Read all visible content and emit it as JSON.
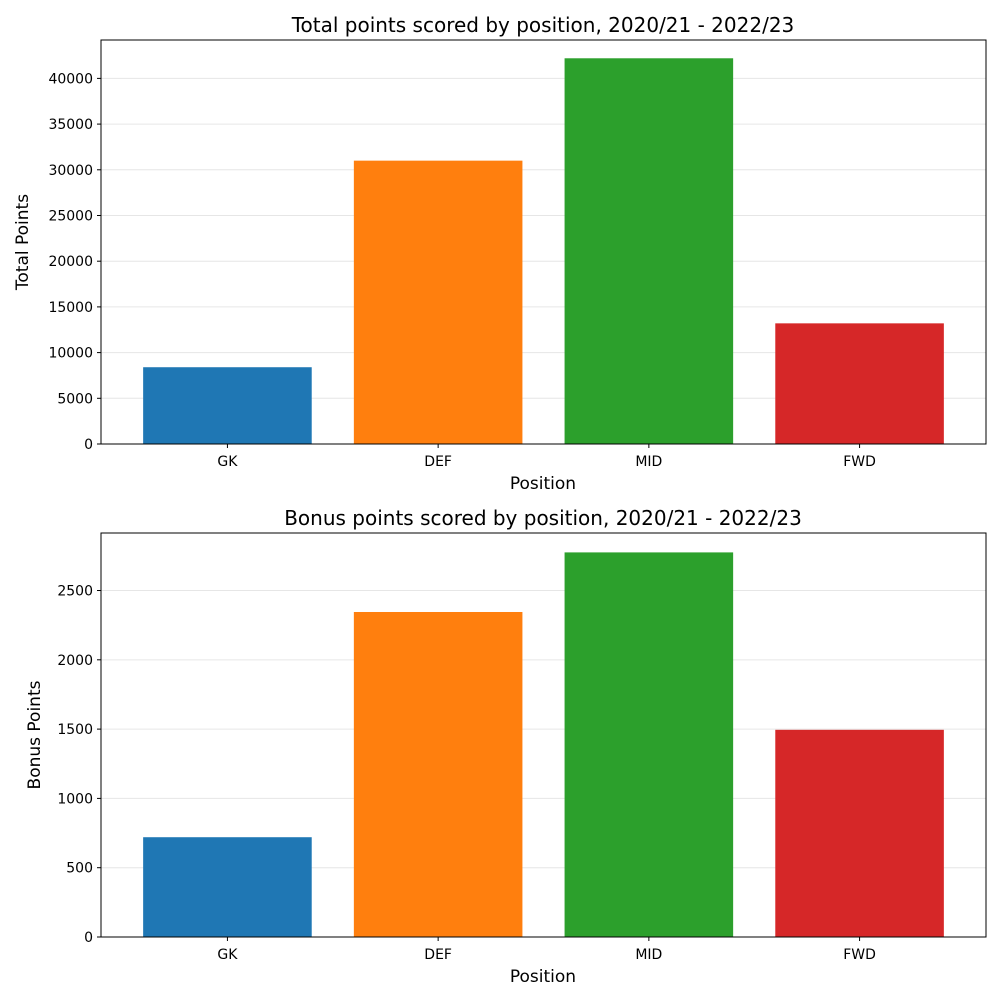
{
  "chart_data": [
    {
      "type": "bar",
      "title": "Total points scored by position, 2020/21 - 2022/23",
      "xlabel": "Position",
      "ylabel": "Total Points",
      "categories": [
        "GK",
        "DEF",
        "MID",
        "FWD"
      ],
      "values": [
        8400,
        31000,
        42200,
        13200
      ],
      "colors": [
        "#1f77b4",
        "#ff7f0e",
        "#2ca02c",
        "#d62728"
      ],
      "ylim": [
        0,
        44200
      ],
      "yticks": [
        0,
        5000,
        10000,
        15000,
        20000,
        25000,
        30000,
        35000,
        40000
      ],
      "grid": true
    },
    {
      "type": "bar",
      "title": "Bonus points scored by position, 2020/21 - 2022/23",
      "xlabel": "Position",
      "ylabel": "Bonus Points",
      "categories": [
        "GK",
        "DEF",
        "MID",
        "FWD"
      ],
      "values": [
        720,
        2345,
        2775,
        1495
      ],
      "colors": [
        "#1f77b4",
        "#ff7f0e",
        "#2ca02c",
        "#d62728"
      ],
      "ylim": [
        0,
        2915
      ],
      "yticks": [
        0,
        500,
        1000,
        1500,
        2000,
        2500
      ],
      "grid": true
    }
  ]
}
